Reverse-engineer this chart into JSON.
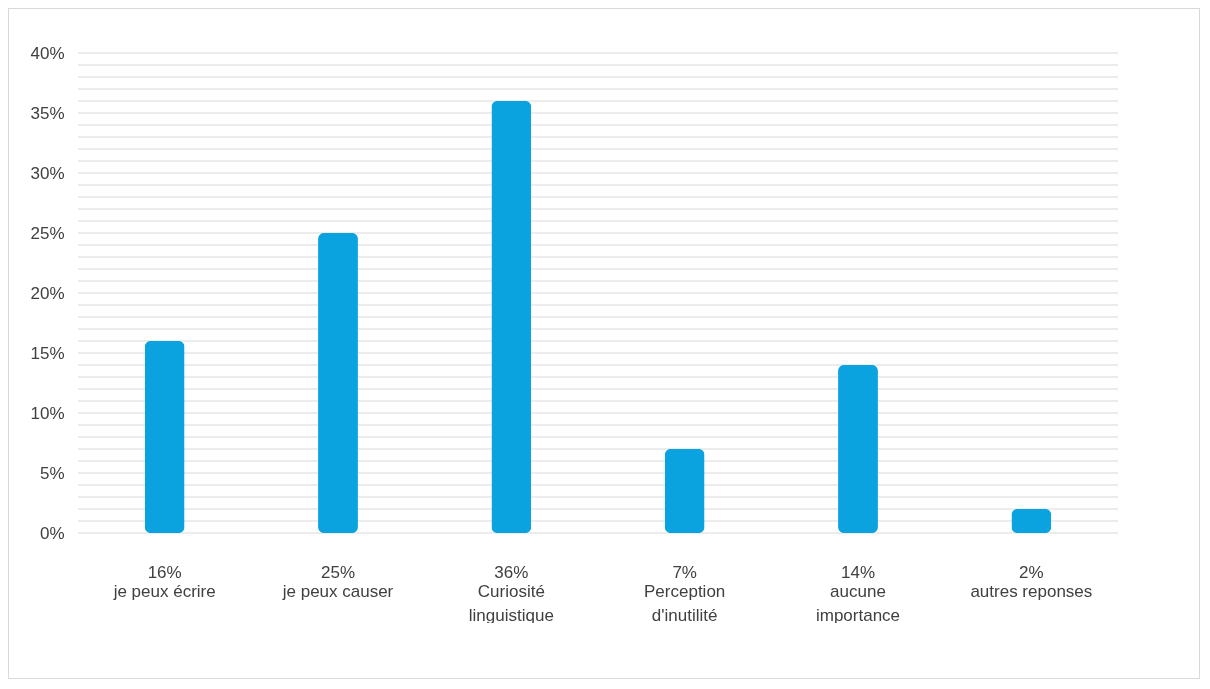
{
  "chart_data": {
    "type": "bar",
    "categories": [
      "je peux écrire",
      "je peux causer",
      "Curiosité linguistique",
      "Perception d'inutilité",
      "aucune importance",
      "autres reponses"
    ],
    "values": [
      16,
      25,
      36,
      7,
      14,
      2
    ],
    "value_labels": [
      "16%",
      "25%",
      "36%",
      "7%",
      "14%",
      "2%"
    ],
    "color": "#0aa3df",
    "ylim": [
      0,
      40
    ],
    "yticks": [
      {
        "value": 0,
        "label": "0%"
      },
      {
        "value": 1,
        "label": null
      },
      {
        "value": 2,
        "label": null
      },
      {
        "value": 3,
        "label": null
      },
      {
        "value": 4,
        "label": null
      },
      {
        "value": 5,
        "label": "5%"
      },
      {
        "value": 6,
        "label": null
      },
      {
        "value": 7,
        "label": null
      },
      {
        "value": 8,
        "label": null
      },
      {
        "value": 9,
        "label": null
      },
      {
        "value": 10,
        "label": "10%"
      },
      {
        "value": 11,
        "label": null
      },
      {
        "value": 12,
        "label": null
      },
      {
        "value": 13,
        "label": null
      },
      {
        "value": 14,
        "label": null
      },
      {
        "value": 15,
        "label": "15%"
      },
      {
        "value": 16,
        "label": null
      },
      {
        "value": 17,
        "label": null
      },
      {
        "value": 18,
        "label": null
      },
      {
        "value": 19,
        "label": null
      },
      {
        "value": 20,
        "label": "20%"
      },
      {
        "value": 21,
        "label": null
      },
      {
        "value": 22,
        "label": null
      },
      {
        "value": 23,
        "label": null
      },
      {
        "value": 24,
        "label": null
      },
      {
        "value": 25,
        "label": "25%"
      },
      {
        "value": 26,
        "label": null
      },
      {
        "value": 27,
        "label": null
      },
      {
        "value": 28,
        "label": null
      },
      {
        "value": 29,
        "label": null
      },
      {
        "value": 30,
        "label": "30%"
      },
      {
        "value": 31,
        "label": null
      },
      {
        "value": 32,
        "label": null
      },
      {
        "value": 33,
        "label": null
      },
      {
        "value": 34,
        "label": null
      },
      {
        "value": 35,
        "label": "35%"
      },
      {
        "value": 36,
        "label": null
      },
      {
        "value": 37,
        "label": null
      },
      {
        "value": 38,
        "label": null
      },
      {
        "value": 39,
        "label": null
      },
      {
        "value": 40,
        "label": "40%"
      }
    ],
    "grid": true
  }
}
